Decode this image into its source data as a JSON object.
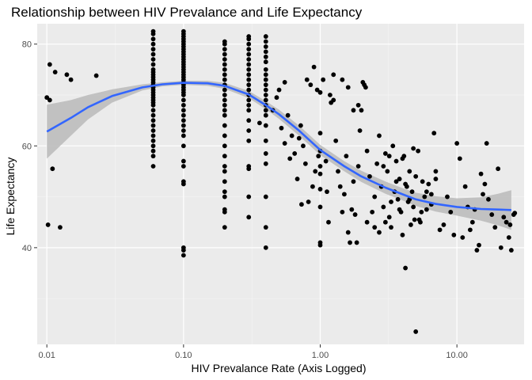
{
  "chart_data": {
    "type": "scatter",
    "title": "Relationship between HIV Prevalance and Life Expectancy",
    "xlabel": "HIV Prevalance Rate (Axis Logged)",
    "ylabel": "Life Expectancy",
    "x_scale": "log10",
    "xlim": [
      0.0085,
      31
    ],
    "ylim": [
      21,
      84
    ],
    "x_ticks": [
      0.01,
      0.1,
      1,
      10
    ],
    "x_tick_labels": [
      "0.01",
      "0.10",
      "1.00",
      "10.00"
    ],
    "y_ticks": [
      40,
      60,
      80
    ],
    "y_tick_labels": [
      "40",
      "60",
      "80"
    ],
    "grid": true,
    "background": "#ebebeb",
    "point_color": "#000000",
    "smooth_color": "#3366ff",
    "ribbon_color": "#bdbdbd",
    "smooth": {
      "x": [
        0.01,
        0.015,
        0.02,
        0.03,
        0.05,
        0.07,
        0.1,
        0.15,
        0.2,
        0.3,
        0.4,
        0.5,
        0.7,
        1.0,
        1.5,
        2,
        3,
        4,
        5,
        7,
        10,
        15,
        20,
        25
      ],
      "y": [
        62.8,
        65.5,
        67.6,
        69.8,
        71.5,
        72.1,
        72.4,
        72.3,
        71.8,
        70.1,
        68.0,
        66.2,
        63.0,
        59.2,
        56.0,
        54.0,
        51.8,
        50.5,
        49.5,
        48.6,
        48.0,
        47.6,
        47.5,
        47.4
      ],
      "lower": [
        57.5,
        62.0,
        65.2,
        68.5,
        70.9,
        71.7,
        72.0,
        71.8,
        71.2,
        69.4,
        67.2,
        65.3,
        62.0,
        58.2,
        55.0,
        52.9,
        50.6,
        49.3,
        48.2,
        47.1,
        46.3,
        45.3,
        44.4,
        43.5
      ],
      "upper": [
        68.1,
        69.0,
        70.0,
        71.1,
        72.1,
        72.5,
        72.8,
        72.8,
        72.4,
        70.8,
        68.8,
        67.1,
        64.0,
        60.2,
        57.0,
        55.1,
        53.0,
        51.7,
        50.8,
        50.1,
        49.7,
        49.9,
        50.6,
        51.3
      ]
    },
    "points": [
      [
        0.01,
        69.5
      ],
      [
        0.0105,
        69.0
      ],
      [
        0.0105,
        76.0
      ],
      [
        0.011,
        55.5
      ],
      [
        0.0115,
        74.5
      ],
      [
        0.0125,
        44.0
      ],
      [
        0.014,
        74.0
      ],
      [
        0.015,
        73.0
      ],
      [
        0.023,
        73.8
      ],
      [
        0.0102,
        44.5
      ],
      [
        0.06,
        82.5
      ],
      [
        0.06,
        82.0
      ],
      [
        0.06,
        81.0
      ],
      [
        0.06,
        80.0
      ],
      [
        0.06,
        79.0
      ],
      [
        0.06,
        78.0
      ],
      [
        0.06,
        77.0
      ],
      [
        0.06,
        76.0
      ],
      [
        0.06,
        75.0
      ],
      [
        0.06,
        74.5
      ],
      [
        0.06,
        74.0
      ],
      [
        0.06,
        73.5
      ],
      [
        0.06,
        73.0
      ],
      [
        0.06,
        72.5
      ],
      [
        0.06,
        72.0
      ],
      [
        0.06,
        71.5
      ],
      [
        0.06,
        71.0
      ],
      [
        0.06,
        70.5
      ],
      [
        0.06,
        70.0
      ],
      [
        0.06,
        69.5
      ],
      [
        0.06,
        69.0
      ],
      [
        0.06,
        68.5
      ],
      [
        0.06,
        68.0
      ],
      [
        0.06,
        67.0
      ],
      [
        0.06,
        66.0
      ],
      [
        0.06,
        65.0
      ],
      [
        0.06,
        64.0
      ],
      [
        0.06,
        63.0
      ],
      [
        0.06,
        62.0
      ],
      [
        0.06,
        61.0
      ],
      [
        0.06,
        60.0
      ],
      [
        0.06,
        59.0
      ],
      [
        0.06,
        58.0
      ],
      [
        0.06,
        56.0
      ],
      [
        0.1,
        82.5
      ],
      [
        0.1,
        82.0
      ],
      [
        0.1,
        81.5
      ],
      [
        0.1,
        81.0
      ],
      [
        0.1,
        80.5
      ],
      [
        0.1,
        80.0
      ],
      [
        0.1,
        79.5
      ],
      [
        0.1,
        79.0
      ],
      [
        0.1,
        78.5
      ],
      [
        0.1,
        78.0
      ],
      [
        0.1,
        77.5
      ],
      [
        0.1,
        77.0
      ],
      [
        0.1,
        76.5
      ],
      [
        0.1,
        76.0
      ],
      [
        0.1,
        75.5
      ],
      [
        0.1,
        75.0
      ],
      [
        0.1,
        74.5
      ],
      [
        0.1,
        74.0
      ],
      [
        0.1,
        73.5
      ],
      [
        0.1,
        73.0
      ],
      [
        0.1,
        72.5
      ],
      [
        0.1,
        72.0
      ],
      [
        0.1,
        71.5
      ],
      [
        0.1,
        71.0
      ],
      [
        0.1,
        70.5
      ],
      [
        0.1,
        70.0
      ],
      [
        0.1,
        69.0
      ],
      [
        0.1,
        68.0
      ],
      [
        0.1,
        67.0
      ],
      [
        0.1,
        66.0
      ],
      [
        0.1,
        65.0
      ],
      [
        0.1,
        64.0
      ],
      [
        0.1,
        63.0
      ],
      [
        0.1,
        62.0
      ],
      [
        0.1,
        60.0
      ],
      [
        0.1,
        57.0
      ],
      [
        0.1,
        56.0
      ],
      [
        0.1,
        53.0
      ],
      [
        0.1,
        52.5
      ],
      [
        0.1,
        40.0
      ],
      [
        0.1,
        39.5
      ],
      [
        0.1,
        38.5
      ],
      [
        0.2,
        80.5
      ],
      [
        0.2,
        80.0
      ],
      [
        0.2,
        79.0
      ],
      [
        0.2,
        78.0
      ],
      [
        0.2,
        77.0
      ],
      [
        0.2,
        76.0
      ],
      [
        0.2,
        75.0
      ],
      [
        0.2,
        74.0
      ],
      [
        0.2,
        73.0
      ],
      [
        0.2,
        72.0
      ],
      [
        0.2,
        71.0
      ],
      [
        0.2,
        70.0
      ],
      [
        0.2,
        69.0
      ],
      [
        0.2,
        68.0
      ],
      [
        0.2,
        67.0
      ],
      [
        0.2,
        66.0
      ],
      [
        0.2,
        64.0
      ],
      [
        0.2,
        62.0
      ],
      [
        0.2,
        60.0
      ],
      [
        0.2,
        58.0
      ],
      [
        0.2,
        56.0
      ],
      [
        0.2,
        55.0
      ],
      [
        0.2,
        53.0
      ],
      [
        0.2,
        51.0
      ],
      [
        0.2,
        50.0
      ],
      [
        0.2,
        47.5
      ],
      [
        0.2,
        47.0
      ],
      [
        0.2,
        44.0
      ],
      [
        0.3,
        81.5
      ],
      [
        0.3,
        81.0
      ],
      [
        0.3,
        80.0
      ],
      [
        0.3,
        79.0
      ],
      [
        0.3,
        78.0
      ],
      [
        0.3,
        77.0
      ],
      [
        0.3,
        76.0
      ],
      [
        0.3,
        75.0
      ],
      [
        0.3,
        74.0
      ],
      [
        0.3,
        73.0
      ],
      [
        0.3,
        72.0
      ],
      [
        0.3,
        71.0
      ],
      [
        0.3,
        70.0
      ],
      [
        0.3,
        69.0
      ],
      [
        0.3,
        68.0
      ],
      [
        0.3,
        67.0
      ],
      [
        0.3,
        65.0
      ],
      [
        0.3,
        63.0
      ],
      [
        0.3,
        61.0
      ],
      [
        0.3,
        56.0
      ],
      [
        0.3,
        55.5
      ],
      [
        0.3,
        50.0
      ],
      [
        0.3,
        46.0
      ],
      [
        0.4,
        81.5
      ],
      [
        0.4,
        80.5
      ],
      [
        0.4,
        79.5
      ],
      [
        0.4,
        78.5
      ],
      [
        0.4,
        77.5
      ],
      [
        0.4,
        76.5
      ],
      [
        0.4,
        75.0
      ],
      [
        0.4,
        74.0
      ],
      [
        0.4,
        73.0
      ],
      [
        0.4,
        72.0
      ],
      [
        0.4,
        71.0
      ],
      [
        0.4,
        70.0
      ],
      [
        0.4,
        69.0
      ],
      [
        0.4,
        68.0
      ],
      [
        0.4,
        67.0
      ],
      [
        0.4,
        66.0
      ],
      [
        0.4,
        64.0
      ],
      [
        0.4,
        61.0
      ],
      [
        0.4,
        58.5
      ],
      [
        0.4,
        56.5
      ],
      [
        0.4,
        50.0
      ],
      [
        0.4,
        44.0
      ],
      [
        0.4,
        40.0
      ],
      [
        0.36,
        64.5
      ],
      [
        0.45,
        67.0
      ],
      [
        0.5,
        71.0
      ],
      [
        0.55,
        72.5
      ],
      [
        0.48,
        69.5
      ],
      [
        0.52,
        63.5
      ],
      [
        0.58,
        66.0
      ],
      [
        0.62,
        62.0
      ],
      [
        0.65,
        58.5
      ],
      [
        0.7,
        61.5
      ],
      [
        0.72,
        64.0
      ],
      [
        0.75,
        60.0
      ],
      [
        0.78,
        56.5
      ],
      [
        0.8,
        73.0
      ],
      [
        0.85,
        72.0
      ],
      [
        0.9,
        75.5
      ],
      [
        0.95,
        71.0
      ],
      [
        0.55,
        60.5
      ],
      [
        0.6,
        57.5
      ],
      [
        0.68,
        53.5
      ],
      [
        0.73,
        48.5
      ],
      [
        0.82,
        49.0
      ],
      [
        0.88,
        52.0
      ],
      [
        0.92,
        55.0
      ],
      [
        0.97,
        58.0
      ],
      [
        1.0,
        40.5
      ],
      [
        1.0,
        41.0
      ],
      [
        1.0,
        48.0
      ],
      [
        1.0,
        51.5
      ],
      [
        1.0,
        54.5
      ],
      [
        1.0,
        56.0
      ],
      [
        1.0,
        59.0
      ],
      [
        1.0,
        62.5
      ],
      [
        1.0,
        70.5
      ],
      [
        1.05,
        73.0
      ],
      [
        1.1,
        57.0
      ],
      [
        1.12,
        51.0
      ],
      [
        1.15,
        45.0
      ],
      [
        1.18,
        70.0
      ],
      [
        1.2,
        68.5
      ],
      [
        1.25,
        69.0
      ],
      [
        1.3,
        61.0
      ],
      [
        1.35,
        55.0
      ],
      [
        1.4,
        52.0
      ],
      [
        1.45,
        47.0
      ],
      [
        1.5,
        50.5
      ],
      [
        1.55,
        58.0
      ],
      [
        1.6,
        43.0
      ],
      [
        1.65,
        41.0
      ],
      [
        1.7,
        47.5
      ],
      [
        1.75,
        53.0
      ],
      [
        1.8,
        46.5
      ],
      [
        1.85,
        41.0
      ],
      [
        1.9,
        56.0
      ],
      [
        1.95,
        63.0
      ],
      [
        2.0,
        67.0
      ],
      [
        2.05,
        72.5
      ],
      [
        2.1,
        72.0
      ],
      [
        2.15,
        71.5
      ],
      [
        1.25,
        74.0
      ],
      [
        1.45,
        73.0
      ],
      [
        1.6,
        71.5
      ],
      [
        1.75,
        67.0
      ],
      [
        1.9,
        68.0
      ],
      [
        2.2,
        45.0
      ],
      [
        2.3,
        54.0
      ],
      [
        2.4,
        47.0
      ],
      [
        2.5,
        50.0
      ],
      [
        2.6,
        56.5
      ],
      [
        2.7,
        62.0
      ],
      [
        2.8,
        52.0
      ],
      [
        2.9,
        48.0
      ],
      [
        3.0,
        58.5
      ],
      [
        3.1,
        55.0
      ],
      [
        3.2,
        46.0
      ],
      [
        3.3,
        44.0
      ],
      [
        3.4,
        60.0
      ],
      [
        3.5,
        51.0
      ],
      [
        3.6,
        57.0
      ],
      [
        3.7,
        49.5
      ],
      [
        3.8,
        53.5
      ],
      [
        3.9,
        47.0
      ],
      [
        4.0,
        42.5
      ],
      [
        4.1,
        58.0
      ],
      [
        4.2,
        36.0
      ],
      [
        4.3,
        52.0
      ],
      [
        4.4,
        49.0
      ],
      [
        4.5,
        55.0
      ],
      [
        4.6,
        44.5
      ],
      [
        4.7,
        51.0
      ],
      [
        4.8,
        48.0
      ],
      [
        4.9,
        45.5
      ],
      [
        5.0,
        23.5
      ],
      [
        5.2,
        59.0
      ],
      [
        5.4,
        45.0
      ],
      [
        5.6,
        53.0
      ],
      [
        5.8,
        50.0
      ],
      [
        6.0,
        47.5
      ],
      [
        6.2,
        52.5
      ],
      [
        6.5,
        48.5
      ],
      [
        6.8,
        62.5
      ],
      [
        7.0,
        53.5
      ],
      [
        7.5,
        43.5
      ],
      [
        8.0,
        44.5
      ],
      [
        8.5,
        50.0
      ],
      [
        9.0,
        47.0
      ],
      [
        9.5,
        42.5
      ],
      [
        10.0,
        60.5
      ],
      [
        10.5,
        57.5
      ],
      [
        11.0,
        42.0
      ],
      [
        11.5,
        52.0
      ],
      [
        12.0,
        48.0
      ],
      [
        12.5,
        43.5
      ],
      [
        13.0,
        45.0
      ],
      [
        13.5,
        47.5
      ],
      [
        14.0,
        39.5
      ],
      [
        14.5,
        40.5
      ],
      [
        15.0,
        54.5
      ],
      [
        15.5,
        50.5
      ],
      [
        16.0,
        52.5
      ],
      [
        16.5,
        60.5
      ],
      [
        17.0,
        49.5
      ],
      [
        18.0,
        46.5
      ],
      [
        19.0,
        44.0
      ],
      [
        20.0,
        55.5
      ],
      [
        21.0,
        40.0
      ],
      [
        22.0,
        46.0
      ],
      [
        23.0,
        45.0
      ],
      [
        24.0,
        42.0
      ],
      [
        25.0,
        39.5
      ],
      [
        26.0,
        46.5
      ],
      [
        26.5,
        46.8
      ],
      [
        24.5,
        44.5
      ],
      [
        2.5,
        44.0
      ],
      [
        2.7,
        43.0
      ],
      [
        3.0,
        45.0
      ],
      [
        3.3,
        49.0
      ],
      [
        3.6,
        53.0
      ],
      [
        4.0,
        57.5
      ],
      [
        4.5,
        49.5
      ],
      [
        5.0,
        54.0
      ],
      [
        5.5,
        47.0
      ],
      [
        6.0,
        51.0
      ],
      [
        6.5,
        50.5
      ],
      [
        7.0,
        55.0
      ],
      [
        3.2,
        58.0
      ],
      [
        2.2,
        59.0
      ],
      [
        2.9,
        56.0
      ],
      [
        4.8,
        59.5
      ],
      [
        5.3,
        45.5
      ],
      [
        4.2,
        52.5
      ],
      [
        3.8,
        47.5
      ]
    ]
  }
}
